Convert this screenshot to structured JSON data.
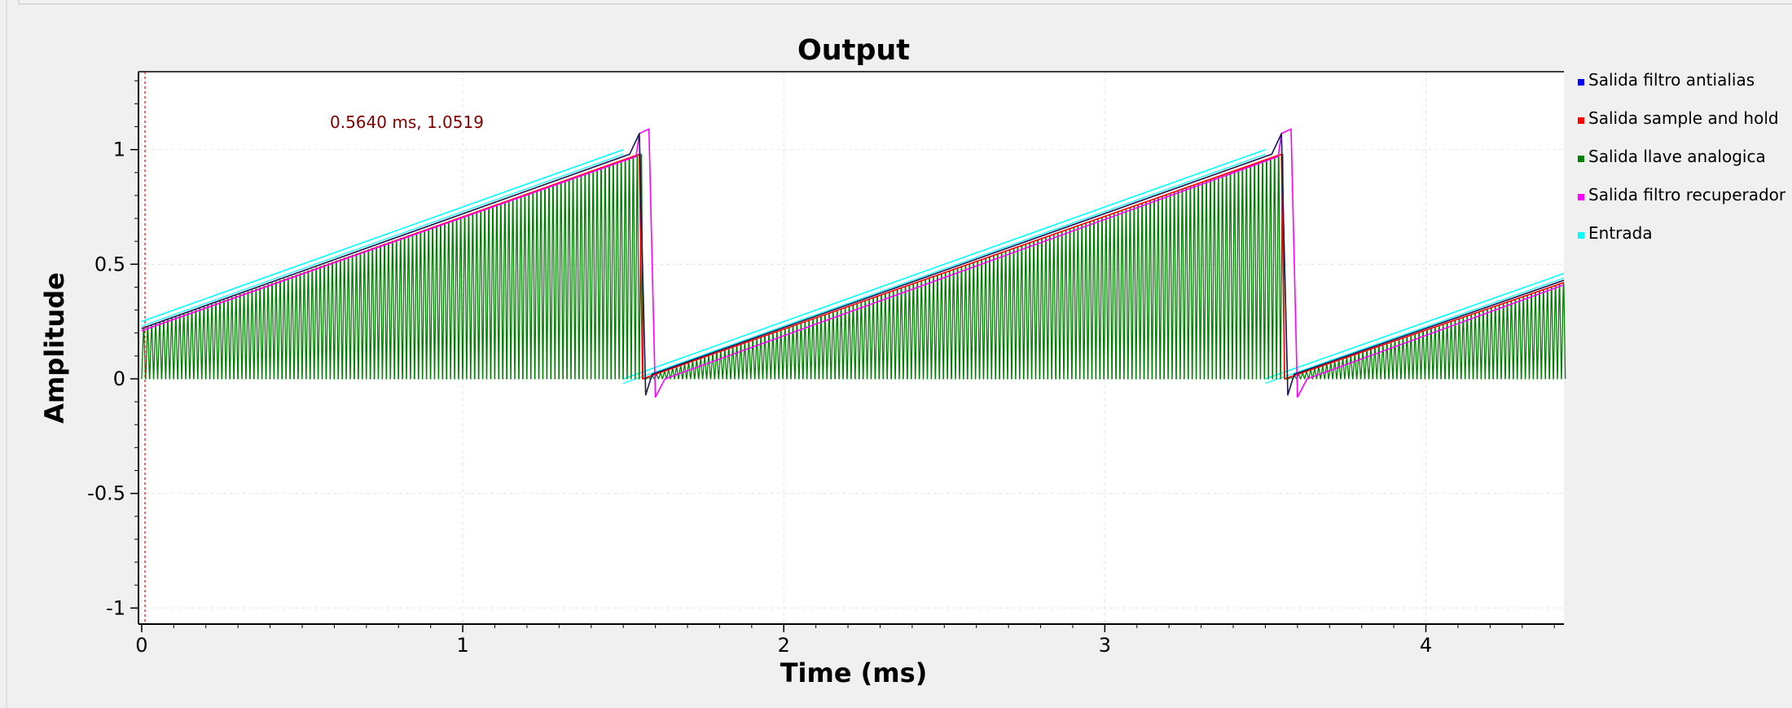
{
  "chart_data": {
    "type": "line",
    "title": "Output",
    "xlabel": "Time (ms)",
    "ylabel": "Amplitude",
    "xlim": [
      -0.01,
      4.43
    ],
    "ylim": [
      -1.07,
      1.34
    ],
    "x_ticks": [
      0,
      1,
      2,
      3,
      4
    ],
    "x_tick_labels": [
      "0",
      "1",
      "2",
      "3",
      "4"
    ],
    "y_ticks": [
      1,
      0.5,
      0,
      -0.5,
      -1
    ],
    "y_tick_labels": [
      "1",
      "0.5",
      "0",
      "-0.5",
      "-1"
    ],
    "grid": true,
    "legend_position": "right",
    "marker_readout": "0.5640 ms, 1.0519",
    "period_ms": 2.0,
    "series": [
      {
        "name": "Salida filtro antialias",
        "color": "#0000ff",
        "points": [
          [
            0,
            0.22
          ],
          [
            1.52,
            0.98
          ],
          [
            1.55,
            1.07
          ],
          [
            1.57,
            -0.07
          ],
          [
            1.59,
            0.02
          ],
          [
            3.52,
            0.98
          ],
          [
            3.55,
            1.07
          ],
          [
            3.57,
            -0.07
          ],
          [
            3.59,
            0.02
          ],
          [
            4.43,
            0.43
          ]
        ]
      },
      {
        "name": "Salida sample and hold",
        "color": "#ff0000",
        "points": [
          [
            0,
            0.21
          ],
          [
            1.55,
            0.98
          ],
          [
            1.56,
            0.0
          ],
          [
            3.55,
            0.98
          ],
          [
            3.56,
            0.0
          ],
          [
            4.43,
            0.42
          ]
        ]
      },
      {
        "name": "Salida llave analogica",
        "color": "#008000",
        "points": [
          [
            0,
            0.22
          ],
          [
            1.55,
            0.98
          ],
          [
            1.56,
            0.0
          ],
          [
            3.55,
            0.98
          ],
          [
            3.56,
            0.0
          ],
          [
            4.43,
            0.42
          ]
        ]
      },
      {
        "name": "Salida filtro recuperador",
        "color": "#ff00ff",
        "points": [
          [
            0,
            0.21
          ],
          [
            1.54,
            0.97
          ],
          [
            1.55,
            1.07
          ],
          [
            1.58,
            1.09
          ],
          [
            1.6,
            -0.08
          ],
          [
            1.63,
            0.0
          ],
          [
            3.54,
            0.97
          ],
          [
            3.55,
            1.07
          ],
          [
            3.58,
            1.09
          ],
          [
            3.6,
            -0.08
          ],
          [
            3.63,
            0.0
          ],
          [
            4.43,
            0.41
          ]
        ]
      },
      {
        "name": "Entrada",
        "color": "#00ffff",
        "points": [
          [
            0,
            0.25
          ],
          [
            1.5,
            1.0
          ],
          [
            1.5,
            0.0
          ],
          [
            3.5,
            1.0
          ],
          [
            3.5,
            0.0
          ],
          [
            4.43,
            0.46
          ]
        ]
      }
    ]
  }
}
